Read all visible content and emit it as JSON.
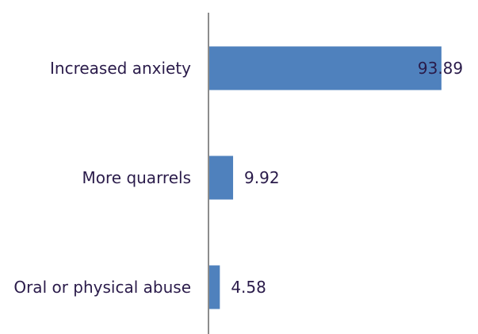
{
  "chart_data": {
    "type": "bar",
    "orientation": "horizontal",
    "categories": [
      "Increased anxiety",
      "More quarrels",
      "Oral or physical abuse"
    ],
    "values": [
      93.89,
      9.92,
      4.58
    ],
    "value_labels": [
      "93.89",
      "9.92",
      "4.58"
    ],
    "title": "",
    "xlabel": "",
    "ylabel": "",
    "xlim": [
      0,
      100
    ],
    "grid": false,
    "legend": "none",
    "colors": {
      "bar": "#4f81bd",
      "axis": "#8c8c8c",
      "text": "#2a1b4a"
    }
  }
}
